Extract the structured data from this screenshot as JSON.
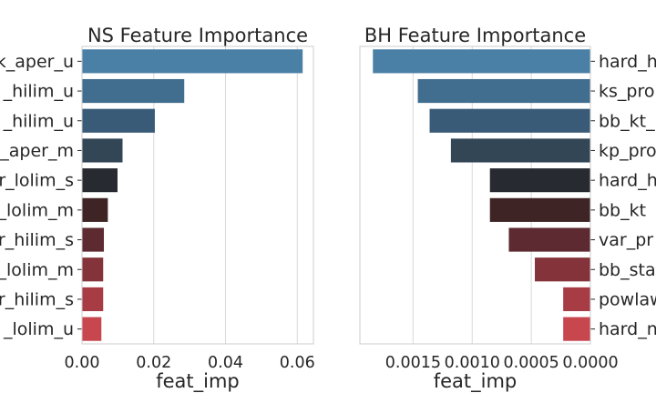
{
  "chart_data": [
    {
      "type": "bar",
      "orientation": "horizontal",
      "title": "NS Feature Importance",
      "xlabel": "feat_imp",
      "ylabel": "",
      "xlim": [
        0,
        0.0645
      ],
      "xticks": [
        0.0,
        0.02,
        0.04,
        0.06
      ],
      "xtick_labels": [
        "0.00",
        "0.02",
        "0.04",
        "0.06"
      ],
      "x_inverted": false,
      "category_axis_side": "left",
      "grid": "vertical",
      "tick_labels_cropped": true,
      "categories": [
        "k_aper_u",
        "_hilim_u",
        "_hilim_u",
        "_aper_m",
        "r_lolim_s",
        "_lolim_m",
        "r_hilim_s",
        "_lolim_m",
        "r_hilim_s",
        "_lolim_u"
      ],
      "values": [
        0.0615,
        0.0285,
        0.0203,
        0.0113,
        0.0099,
        0.0072,
        0.0061,
        0.0059,
        0.0059,
        0.0054
      ],
      "colors": [
        "#4a7fa6",
        "#416d8f",
        "#3a5b77",
        "#324656",
        "#272a30",
        "#3f2426",
        "#5c2a30",
        "#833339",
        "#a83c45",
        "#c8474f"
      ]
    },
    {
      "type": "bar",
      "orientation": "horizontal",
      "title": "BH Feature Importance",
      "xlabel": "feat_imp",
      "ylabel": "",
      "xlim": [
        0.00195,
        0
      ],
      "xticks": [
        0.0015,
        0.001,
        0.0005,
        0.0
      ],
      "xtick_labels": [
        "0.0015",
        "0.0010",
        "0.0005",
        "0.0000"
      ],
      "x_inverted": true,
      "category_axis_side": "right",
      "grid": "vertical",
      "tick_labels_cropped": true,
      "categories": [
        "hard_h",
        "ks_pro",
        "bb_kt_",
        "kp_pro",
        "hard_h",
        "bb_kt",
        "var_pr",
        "bb_sta",
        "powlaw",
        "hard_n"
      ],
      "values": [
        0.00184,
        0.00146,
        0.00136,
        0.00118,
        0.00085,
        0.00085,
        0.00069,
        0.00047,
        0.00023,
        0.00023
      ],
      "colors": [
        "#4a7fa6",
        "#416d8f",
        "#3a5b77",
        "#324656",
        "#272a30",
        "#3f2426",
        "#5c2a30",
        "#833339",
        "#a83c45",
        "#c8474f"
      ]
    }
  ]
}
